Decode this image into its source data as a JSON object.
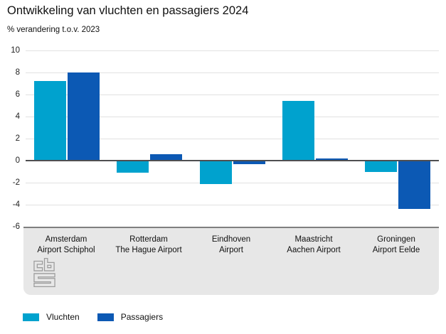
{
  "title": "Ontwikkeling van vluchten en passagiers 2024",
  "subtitle": "% verandering t.o.v. 2023",
  "colors": {
    "vluchten": "#00a2ce",
    "passagiers": "#0c59b4",
    "gridline": "#e1e1e1",
    "zero_line": "#4f4f51",
    "footer_bg": "#e7e7e7",
    "logo_stroke": "#9c9c9c"
  },
  "chart_data": {
    "type": "bar",
    "categories": [
      {
        "line1": "Amsterdam",
        "line2": "Airport Schiphol"
      },
      {
        "line1": "Rotterdam",
        "line2": "The Hague Airport"
      },
      {
        "line1": "Eindhoven",
        "line2": "Airport"
      },
      {
        "line1": "Maastricht",
        "line2": "Aachen Airport"
      },
      {
        "line1": "Groningen",
        "line2": "Airport Eelde"
      }
    ],
    "series": [
      {
        "name": "Vluchten",
        "color": "#00a2ce",
        "values": [
          7.2,
          -1.1,
          -2.1,
          5.4,
          -1.0
        ]
      },
      {
        "name": "Passagiers",
        "color": "#0c59b4",
        "values": [
          8.0,
          0.6,
          -0.3,
          0.2,
          -4.4
        ]
      }
    ],
    "title": "Ontwikkeling van vluchten en passagiers 2024",
    "subtitle_ylabel": "% verandering t.o.v. 2023",
    "y_ticks": [
      10,
      8,
      6,
      4,
      2,
      0,
      -2,
      -4,
      -6
    ],
    "ylim": [
      -6,
      10
    ],
    "grid": true,
    "legend_position": "bottom"
  },
  "legend": {
    "items": [
      {
        "label": "Vluchten",
        "color": "#00a2ce"
      },
      {
        "label": "Passagiers",
        "color": "#0c59b4"
      }
    ]
  },
  "logo_name": "cbs-logo"
}
